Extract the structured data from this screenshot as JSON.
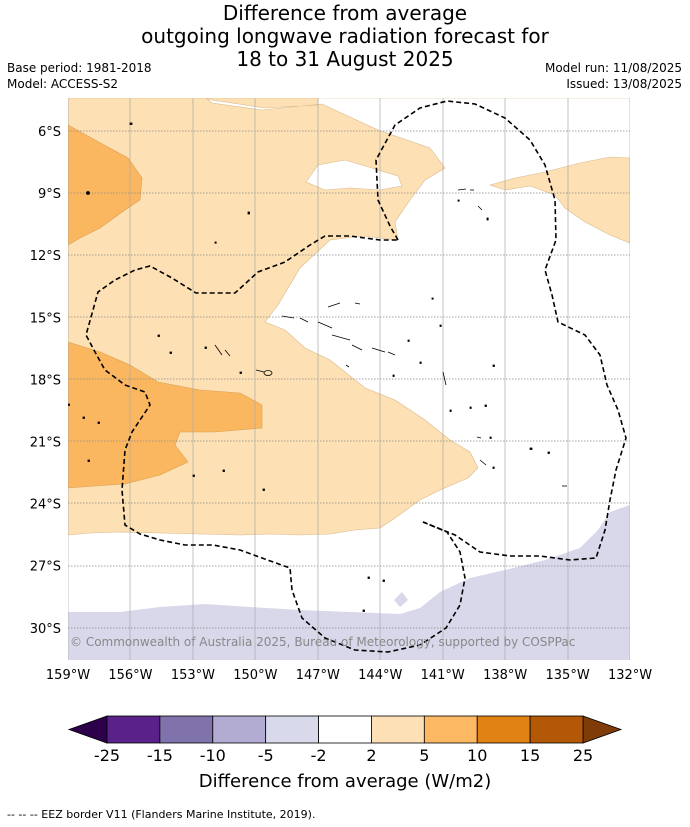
{
  "title": {
    "line1": "Difference from average",
    "line2": "outgoing longwave radiation forecast for",
    "line3": "18 to 31 August 2025"
  },
  "meta": {
    "base_period": "Base period: 1981-2018",
    "model": "Model: ACCESS-S2",
    "model_run": "Model run: 11/08/2025",
    "issued": "Issued: 13/08/2025"
  },
  "map": {
    "lat_labels": [
      "6°S",
      "9°S",
      "12°S",
      "15°S",
      "18°S",
      "21°S",
      "24°S",
      "27°S",
      "30°S"
    ],
    "lon_labels": [
      "159°W",
      "156°W",
      "153°W",
      "150°W",
      "147°W",
      "144°W",
      "141°W",
      "138°W",
      "135°W",
      "132°W"
    ],
    "copyright": "© Commonwealth of Australia 2025, Bureau of Meteorology, supported by COSPPac",
    "colors": {
      "c_2_5": "#fde0b4",
      "c_5_10": "#fbb760",
      "c_neg5_neg2": "#d8d8ea",
      "grid": "#888888",
      "eez": "#000000"
    }
  },
  "colorbar": {
    "ticks": [
      "-25",
      "-15",
      "-10",
      "-5",
      "-2",
      "2",
      "5",
      "10",
      "15",
      "25"
    ],
    "colors": [
      "#5a2188",
      "#8073ac",
      "#b2abd2",
      "#d8daeb",
      "#ffffff",
      "#fee0b6",
      "#fdb863",
      "#e08214",
      "#b35806"
    ],
    "under_color": "#2d004b",
    "over_color": "#7f3b08",
    "title": "Difference from average (W/m2)"
  },
  "footer": "--  --  -- EEZ border V11 (Flanders Marine Institute, 2019)."
}
